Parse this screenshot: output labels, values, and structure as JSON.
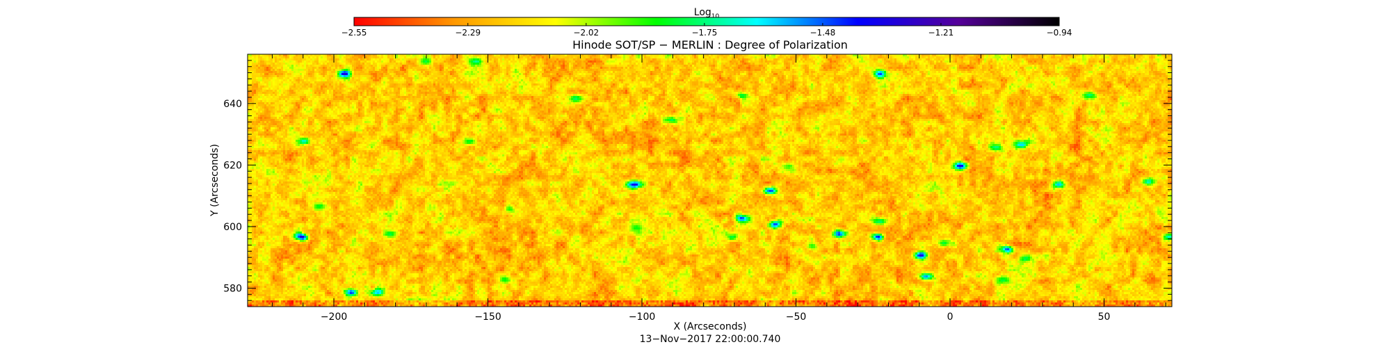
{
  "chart_data": {
    "type": "heatmap",
    "title": "Hinode SOT/SP − MERLIN : Degree of Polarization",
    "xlabel": "X (Arcseconds)",
    "ylabel": "Y (Arcseconds)",
    "subtitle": "13−Nov−2017  22:00:00.740",
    "xlim": [
      -228,
      72
    ],
    "ylim": [
      574,
      656
    ],
    "x_ticks": [
      -200,
      -150,
      -100,
      -50,
      0,
      50
    ],
    "x_tick_labels": [
      "−200",
      "−150",
      "−100",
      "−50",
      "0",
      "50"
    ],
    "y_ticks": [
      580,
      600,
      620,
      640
    ],
    "y_tick_labels": [
      "580",
      "600",
      "620",
      "640"
    ],
    "colorbar": {
      "label_main": "Log",
      "label_sub": "10",
      "range": [
        -2.55,
        -0.94
      ],
      "ticks": [
        -2.55,
        -2.29,
        -2.02,
        -1.75,
        -1.48,
        -1.21,
        -0.94
      ],
      "tick_labels": [
        "−2.55",
        "−2.29",
        "−2.02",
        "−1.75",
        "−1.48",
        "−1.21",
        "−0.94"
      ],
      "colors": [
        "#ff0000",
        "#ff9900",
        "#ffff00",
        "#00ff00",
        "#00ffff",
        "#0000ff",
        "#550099",
        "#000000"
      ]
    },
    "typical_value": -2.2,
    "concentrations": [
      {
        "x": -197,
        "y": 650,
        "peak": -1.35
      },
      {
        "x": -171,
        "y": 654,
        "peak": -1.8
      },
      {
        "x": -154,
        "y": 654,
        "peak": -1.75
      },
      {
        "x": -122,
        "y": 642,
        "peak": -1.8
      },
      {
        "x": -68,
        "y": 643,
        "peak": -1.8
      },
      {
        "x": -23,
        "y": 650,
        "peak": -1.35
      },
      {
        "x": -210,
        "y": 628,
        "peak": -1.7
      },
      {
        "x": -156,
        "y": 628,
        "peak": -1.8
      },
      {
        "x": -143,
        "y": 606,
        "peak": -1.9
      },
      {
        "x": -182,
        "y": 598,
        "peak": -1.8
      },
      {
        "x": -211,
        "y": 597,
        "peak": -1.3
      },
      {
        "x": -205,
        "y": 607,
        "peak": -1.85
      },
      {
        "x": -103,
        "y": 614,
        "peak": -1.35
      },
      {
        "x": -91,
        "y": 635,
        "peak": -1.75
      },
      {
        "x": -59,
        "y": 612,
        "peak": -1.3
      },
      {
        "x": -68,
        "y": 603,
        "peak": -1.45
      },
      {
        "x": -57,
        "y": 601,
        "peak": -1.45
      },
      {
        "x": -71,
        "y": 597,
        "peak": -1.8
      },
      {
        "x": -53,
        "y": 620,
        "peak": -1.85
      },
      {
        "x": -36,
        "y": 598,
        "peak": -1.45
      },
      {
        "x": -23,
        "y": 602,
        "peak": -1.7
      },
      {
        "x": -24,
        "y": 597,
        "peak": -1.45
      },
      {
        "x": -10,
        "y": 591,
        "peak": -1.3
      },
      {
        "x": -8,
        "y": 584,
        "peak": -1.55
      },
      {
        "x": 3,
        "y": 620,
        "peak": -1.45
      },
      {
        "x": 15,
        "y": 626,
        "peak": -1.7
      },
      {
        "x": 23,
        "y": 627,
        "peak": -1.6
      },
      {
        "x": 18,
        "y": 593,
        "peak": -1.5
      },
      {
        "x": 24,
        "y": 590,
        "peak": -1.75
      },
      {
        "x": 17,
        "y": 583,
        "peak": -1.8
      },
      {
        "x": 35,
        "y": 614,
        "peak": -1.6
      },
      {
        "x": 64,
        "y": 615,
        "peak": -1.6
      },
      {
        "x": 71,
        "y": 597,
        "peak": -1.7
      },
      {
        "x": -195,
        "y": 579,
        "peak": -1.45
      },
      {
        "x": -186,
        "y": 579,
        "peak": -1.6
      },
      {
        "x": -145,
        "y": 583,
        "peak": -1.8
      },
      {
        "x": -102,
        "y": 600,
        "peak": -1.85
      },
      {
        "x": -2,
        "y": 595,
        "peak": -1.8
      },
      {
        "x": 45,
        "y": 643,
        "peak": -1.75
      },
      {
        "x": -45,
        "y": 594,
        "peak": -1.9
      }
    ]
  }
}
